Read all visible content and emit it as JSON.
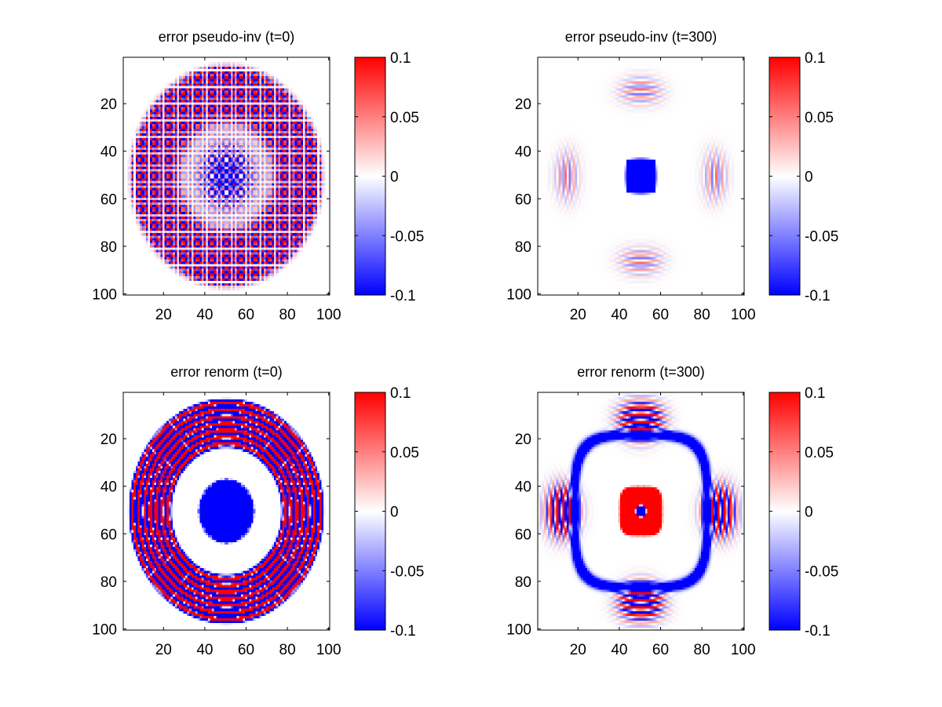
{
  "chart_data": [
    {
      "type": "heatmap",
      "title": "error pseudo-inv (t=0)",
      "xlim": [
        0.5,
        100.5
      ],
      "ylim": [
        0.5,
        100.5
      ],
      "y_reversed": true,
      "xticks": [
        "20",
        "40",
        "60",
        "80",
        "100"
      ],
      "yticks": [
        "20",
        "40",
        "60",
        "80",
        "100"
      ],
      "colorbar": {
        "range": [
          -0.1,
          0.1
        ],
        "ticks": [
          "0.1",
          "0.05",
          "0",
          "-0.05",
          "-0.1"
        ],
        "colormap": "blue-white-red",
        "low_color": "#0000ff",
        "mid_color": "#ffffff",
        "high_color": "#ff0000"
      },
      "pattern": "Interference error field with three concentric rings plus central disc, strong magnitude, period approx 3.5 grid cells"
    },
    {
      "type": "heatmap",
      "title": "error pseudo-inv (t=300)",
      "xlim": [
        0.5,
        100.5
      ],
      "ylim": [
        0.5,
        100.5
      ],
      "y_reversed": true,
      "xticks": [
        "20",
        "40",
        "60",
        "80",
        "100"
      ],
      "yticks": [
        "20",
        "40",
        "60",
        "80",
        "100"
      ],
      "colorbar": {
        "range": [
          -0.1,
          0.1
        ],
        "ticks": [
          "0.1",
          "0.05",
          "0",
          "-0.05",
          "-0.1"
        ],
        "colormap": "blue-white-red",
        "low_color": "#0000ff",
        "mid_color": "#ffffff",
        "high_color": "#ff0000"
      },
      "pattern": "Mostly near zero; blue blob at center (~50,50); faint striped lobes near top, bottom, left and right at radius ~35"
    },
    {
      "type": "heatmap",
      "title": "error renorm (t=0)",
      "xlim": [
        0.5,
        100.5
      ],
      "ylim": [
        0.5,
        100.5
      ],
      "y_reversed": true,
      "xticks": [
        "20",
        "40",
        "60",
        "80",
        "100"
      ],
      "yticks": [
        "20",
        "40",
        "60",
        "80",
        "100"
      ],
      "colorbar": {
        "range": [
          -0.1,
          0.1
        ],
        "ticks": [
          "0.1",
          "0.05",
          "0",
          "-0.05",
          "-0.1"
        ],
        "colormap": "blue-white-red",
        "low_color": "#0000ff",
        "mid_color": "#ffffff",
        "high_color": "#ff0000"
      },
      "pattern": "Saturated alternating red/blue thick outer ring (radius ~28-47) and blue-dominant central disc (radius ~13)"
    },
    {
      "type": "heatmap",
      "title": "error renorm (t=300)",
      "xlim": [
        0.5,
        100.5
      ],
      "ylim": [
        0.5,
        100.5
      ],
      "y_reversed": true,
      "xticks": [
        "20",
        "40",
        "60",
        "80",
        "100"
      ],
      "yticks": [
        "20",
        "40",
        "60",
        "80",
        "100"
      ],
      "colorbar": {
        "range": [
          -0.1,
          0.1
        ],
        "ticks": [
          "0.1",
          "0.05",
          "0",
          "-0.05",
          "-0.1"
        ],
        "colormap": "blue-white-red",
        "low_color": "#0000ff",
        "mid_color": "#ffffff",
        "high_color": "#ff0000"
      },
      "pattern": "Red cross-hatched disc at center with small blue core; thin rounded-square blue ring at radius ~30; striped lobes on four sides; faint corner artifacts"
    }
  ]
}
